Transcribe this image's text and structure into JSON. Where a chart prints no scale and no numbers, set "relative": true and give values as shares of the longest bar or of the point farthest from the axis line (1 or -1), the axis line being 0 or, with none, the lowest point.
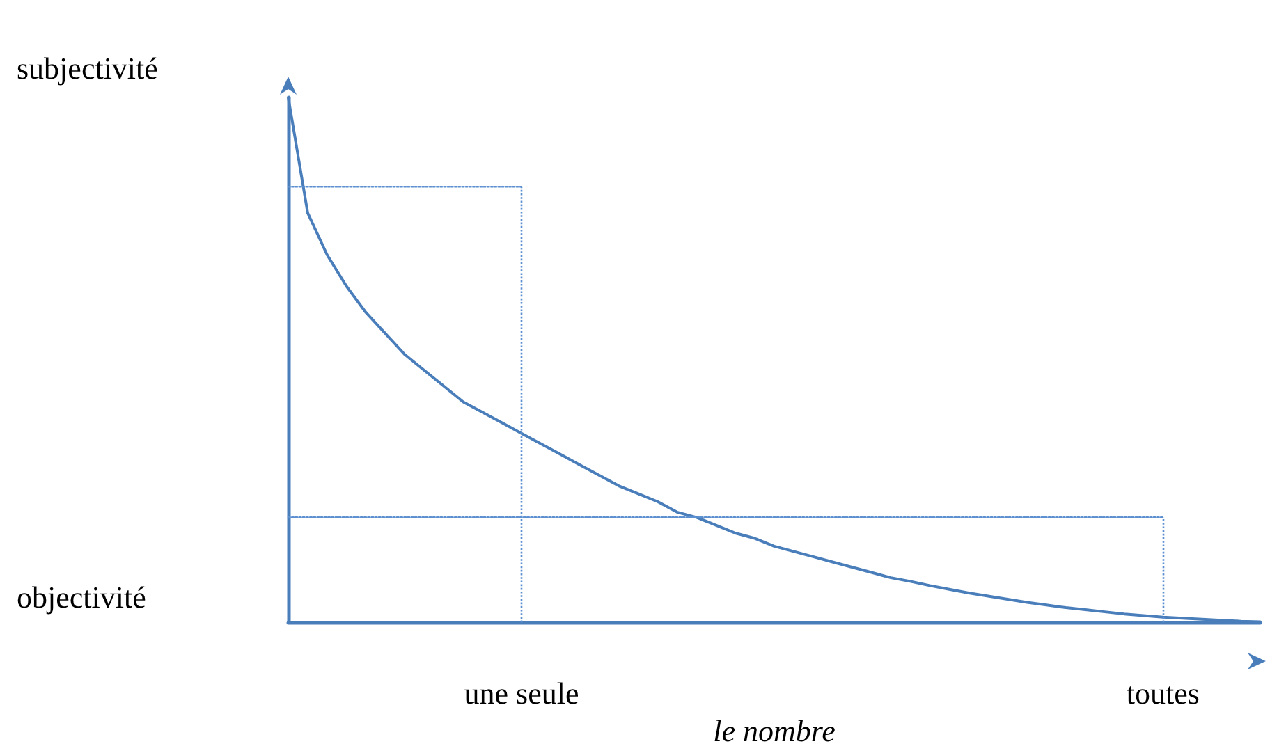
{
  "chart_data": {
    "type": "line",
    "relative": true,
    "xlabel": "le nombre",
    "ylabel": "subjectivité",
    "annotations": [
      "objectivité"
    ],
    "grid": false,
    "marker": "none",
    "ref_lines": [
      {
        "axis": "x",
        "value": "une seule",
        "color": "#5b8fd0",
        "line_style": "dotted"
      },
      {
        "axis": "x",
        "value": "toutes",
        "color": "#5b8fd0",
        "line_style": "dotted"
      }
    ],
    "categories": [
      null,
      null,
      null,
      null,
      null,
      null,
      null,
      null,
      null,
      null,
      null,
      null,
      "une seule",
      null,
      null,
      null,
      null,
      null,
      null,
      null,
      null,
      null,
      null,
      null,
      null,
      null,
      null,
      null,
      null,
      null,
      null,
      null,
      null,
      null,
      null,
      null,
      null,
      null,
      null,
      null,
      null,
      null,
      null,
      null,
      null,
      "toutes",
      null,
      null,
      null,
      null,
      null
    ],
    "series": [
      {
        "color": "#4a7ebb",
        "line_style": "solid",
        "values": [
          1,
          0.78,
          0.7,
          0.64,
          0.59,
          0.55,
          0.51,
          0.48,
          0.45,
          0.42,
          0.4,
          0.38,
          0.36,
          0.34,
          0.32,
          0.3,
          0.28,
          0.26,
          0.245,
          0.23,
          0.21,
          0.2,
          0.185,
          0.17,
          0.16,
          0.145,
          0.135,
          0.125,
          0.115,
          0.105,
          0.095,
          0.085,
          0.078,
          0.07,
          0.063,
          0.056,
          0.05,
          0.044,
          0.038,
          0.033,
          0.028,
          0.024,
          0.02,
          0.016,
          0.013,
          0.01,
          0.008,
          0.006,
          0.004,
          0.002,
          0.001
        ]
      },
      {
        "color": "#5b8fd0",
        "line_style": "dotted",
        "values": [
          0.83,
          0.83,
          0.83,
          0.83,
          0.83,
          0.83,
          0.83,
          0.83,
          0.83,
          0.83,
          0.83,
          0.83,
          0.83,
          null,
          null,
          null,
          null,
          null,
          null,
          null,
          null,
          null,
          null,
          null,
          null,
          null,
          null,
          null,
          null,
          null,
          null,
          null,
          null,
          null,
          null,
          null,
          null,
          null,
          null,
          null,
          null,
          null,
          null,
          null,
          null,
          null,
          null,
          null,
          null,
          null,
          null
        ]
      },
      {
        "color": "#5b8fd0",
        "line_style": "dotted",
        "values": [
          0.2,
          0.2,
          0.2,
          0.2,
          0.2,
          0.2,
          0.2,
          0.2,
          0.2,
          0.2,
          0.2,
          0.2,
          0.2,
          0.2,
          0.2,
          0.2,
          0.2,
          0.2,
          0.2,
          0.2,
          0.2,
          0.2,
          0.2,
          0.2,
          0.2,
          0.2,
          0.2,
          0.2,
          0.2,
          0.2,
          0.2,
          0.2,
          0.2,
          0.2,
          0.2,
          0.2,
          0.2,
          0.2,
          0.2,
          0.2,
          0.2,
          0.2,
          0.2,
          0.2,
          0.2,
          0.2,
          null,
          null,
          null,
          null,
          null
        ]
      }
    ]
  }
}
